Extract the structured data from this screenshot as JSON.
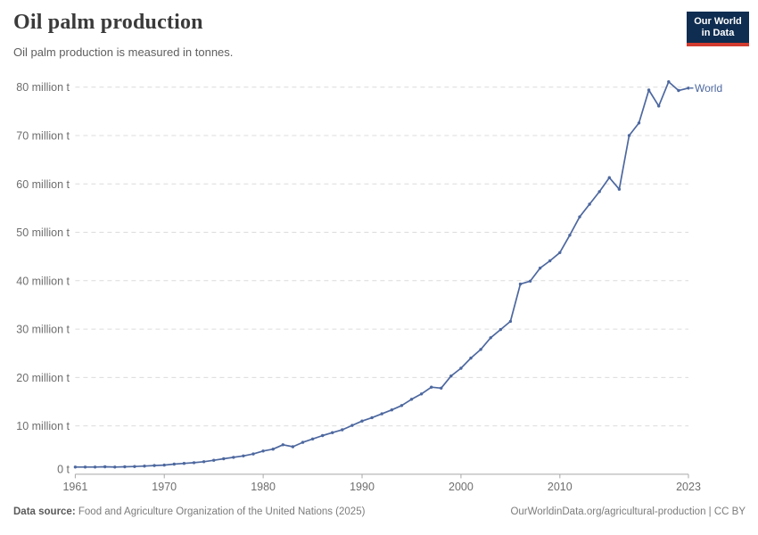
{
  "header": {
    "title": "Oil palm production",
    "subtitle": "Oil palm production is measured in tonnes.",
    "logo": {
      "line1": "Our World",
      "line2": "in Data",
      "bg_color": "#0f2d50",
      "accent_color": "#d23b2f"
    }
  },
  "chart_data": {
    "type": "line",
    "title": "Oil palm production",
    "xlabel": "",
    "ylabel": "",
    "unit": "million tonnes",
    "grid": "horizontal dashed",
    "legend_position": "end-of-line",
    "xlim": [
      1961,
      2023
    ],
    "ylim": [
      0,
      80
    ],
    "x_ticks": [
      1961,
      1970,
      1980,
      1990,
      2000,
      2010,
      2023
    ],
    "y_ticks": [
      {
        "value": 0,
        "label": "0 t"
      },
      {
        "value": 10,
        "label": "10 million t"
      },
      {
        "value": 20,
        "label": "20 million t"
      },
      {
        "value": 30,
        "label": "30 million t"
      },
      {
        "value": 40,
        "label": "40 million t"
      },
      {
        "value": 50,
        "label": "50 million t"
      },
      {
        "value": 60,
        "label": "60 million t"
      },
      {
        "value": 70,
        "label": "70 million t"
      },
      {
        "value": 80,
        "label": "80 million t"
      }
    ],
    "series": [
      {
        "name": "World",
        "color": "#4d689f",
        "x": [
          1961,
          1962,
          1963,
          1964,
          1965,
          1966,
          1967,
          1968,
          1969,
          1970,
          1971,
          1972,
          1973,
          1974,
          1975,
          1976,
          1977,
          1978,
          1979,
          1980,
          1981,
          1982,
          1983,
          1984,
          1985,
          1986,
          1987,
          1988,
          1989,
          1990,
          1991,
          1992,
          1993,
          1994,
          1995,
          1996,
          1997,
          1998,
          1999,
          2000,
          2001,
          2002,
          2003,
          2004,
          2005,
          2006,
          2007,
          2008,
          2009,
          2010,
          2011,
          2012,
          2013,
          2014,
          2015,
          2016,
          2017,
          2018,
          2019,
          2020,
          2021,
          2022,
          2023
        ],
        "values": [
          1.5,
          1.5,
          1.5,
          1.55,
          1.5,
          1.55,
          1.6,
          1.7,
          1.8,
          1.9,
          2.1,
          2.25,
          2.4,
          2.6,
          2.9,
          3.2,
          3.5,
          3.8,
          4.2,
          4.8,
          5.2,
          6.1,
          5.7,
          6.6,
          7.3,
          8.0,
          8.6,
          9.2,
          10.1,
          11.0,
          11.7,
          12.5,
          13.3,
          14.2,
          15.5,
          16.6,
          18.0,
          17.8,
          20.3,
          21.9,
          24.0,
          25.8,
          28.2,
          29.9,
          31.6,
          39.3,
          39.9,
          42.6,
          44.1,
          45.8,
          49.4,
          53.2,
          55.8,
          58.4,
          61.3,
          58.9,
          70.0,
          72.6,
          79.4,
          76.1,
          81.1,
          79.3,
          79.8
        ]
      }
    ]
  },
  "footer": {
    "source_label": "Data source:",
    "source_text": "Food and Agriculture Organization of the United Nations (2025)",
    "link_text": "OurWorldinData.org/agricultural-production | CC BY"
  },
  "colors": {
    "line": "#4d689f",
    "gridline": "#dcdcdc",
    "axis": "#a8a8a8",
    "title_text": "#3a3a3a",
    "tick_text": "#6e6e6e"
  }
}
